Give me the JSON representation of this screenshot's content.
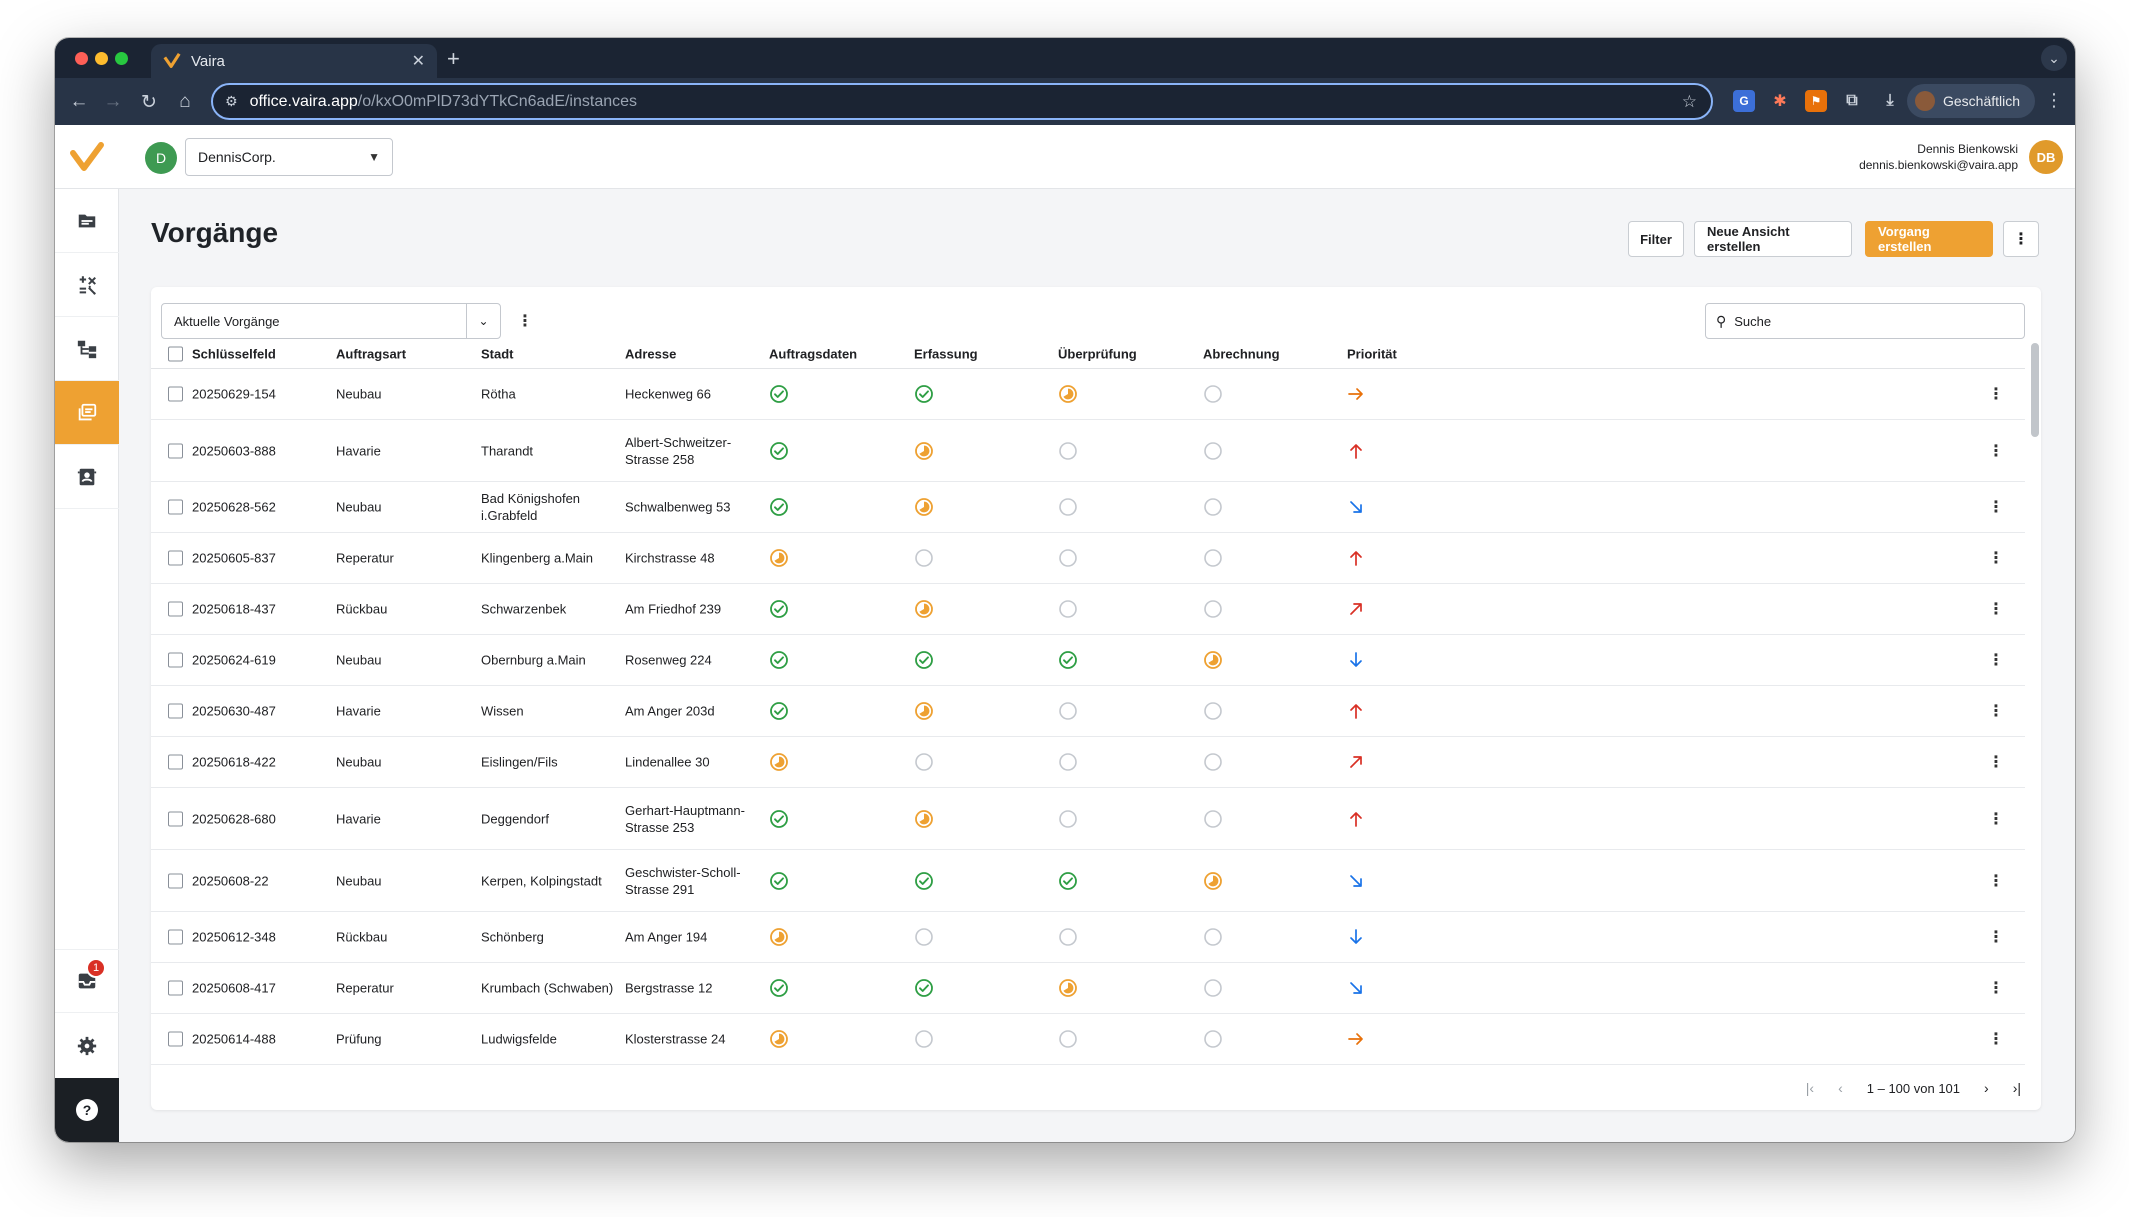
{
  "browser": {
    "tab_title": "Vaira",
    "url_host": "office.vaira.app",
    "url_path": "/o/kxO0mPlD73dYTkCn6adE/instances",
    "profile_label": "Geschäftlich"
  },
  "header": {
    "org_initial": "D",
    "org_name": "DennisCorp.",
    "user_name": "Dennis Bienkowski",
    "user_email": "dennis.bienkowski@vaira.app",
    "user_initials": "DB"
  },
  "sidebar": {
    "inbox_badge": "1",
    "help_label": "?"
  },
  "page": {
    "title": "Vorgänge",
    "filter_label": "Filter",
    "new_view_label": "Neue Ansicht erstellen",
    "create_label": "Vorgang erstellen"
  },
  "table": {
    "view_name": "Aktuelle Vorgänge",
    "search_placeholder": "Suche",
    "columns": [
      "Schlüsselfeld",
      "Auftragsart",
      "Stadt",
      "Adresse",
      "Auftragsdaten",
      "Erfassung",
      "Überprüfung",
      "Abrechnung",
      "Priorität"
    ],
    "rows": [
      {
        "key": "20250629-154",
        "type": "Neubau",
        "city": "Rötha",
        "address": "Heckenweg 66",
        "auftrag": "done",
        "erfassung": "done",
        "pruefung": "progress",
        "abrechnung": "open",
        "priority": "right"
      },
      {
        "key": "20250603-888",
        "type": "Havarie",
        "city": "Tharandt",
        "address": "Albert-Schweitzer-Strasse 258",
        "auftrag": "done",
        "erfassung": "progress",
        "pruefung": "open",
        "abrechnung": "open",
        "priority": "up"
      },
      {
        "key": "20250628-562",
        "type": "Neubau",
        "city": "Bad Königshofen i.Grabfeld",
        "address": "Schwalbenweg 53",
        "auftrag": "done",
        "erfassung": "progress",
        "pruefung": "open",
        "abrechnung": "open",
        "priority": "down-right"
      },
      {
        "key": "20250605-837",
        "type": "Reperatur",
        "city": "Klingenberg a.Main",
        "address": "Kirchstrasse 48",
        "auftrag": "progress",
        "erfassung": "open",
        "pruefung": "open",
        "abrechnung": "open",
        "priority": "up"
      },
      {
        "key": "20250618-437",
        "type": "Rückbau",
        "city": "Schwarzenbek",
        "address": "Am Friedhof 239",
        "auftrag": "done",
        "erfassung": "progress",
        "pruefung": "open",
        "abrechnung": "open",
        "priority": "up-right"
      },
      {
        "key": "20250624-619",
        "type": "Neubau",
        "city": "Obernburg a.Main",
        "address": "Rosenweg 224",
        "auftrag": "done",
        "erfassung": "done",
        "pruefung": "done",
        "abrechnung": "progress",
        "priority": "down"
      },
      {
        "key": "20250630-487",
        "type": "Havarie",
        "city": "Wissen",
        "address": "Am Anger 203d",
        "auftrag": "done",
        "erfassung": "progress",
        "pruefung": "open",
        "abrechnung": "open",
        "priority": "up"
      },
      {
        "key": "20250618-422",
        "type": "Neubau",
        "city": "Eislingen/Fils",
        "address": "Lindenallee 30",
        "auftrag": "progress",
        "erfassung": "open",
        "pruefung": "open",
        "abrechnung": "open",
        "priority": "up-right"
      },
      {
        "key": "20250628-680",
        "type": "Havarie",
        "city": "Deggendorf",
        "address": "Gerhart-Hauptmann-Strasse 253",
        "auftrag": "done",
        "erfassung": "progress",
        "pruefung": "open",
        "abrechnung": "open",
        "priority": "up"
      },
      {
        "key": "20250608-22",
        "type": "Neubau",
        "city": "Kerpen, Kolpingstadt",
        "address": "Geschwister-Scholl-Strasse 291",
        "auftrag": "done",
        "erfassung": "done",
        "pruefung": "done",
        "abrechnung": "progress",
        "priority": "down-right"
      },
      {
        "key": "20250612-348",
        "type": "Rückbau",
        "city": "Schönberg",
        "address": "Am Anger 194",
        "auftrag": "progress",
        "erfassung": "open",
        "pruefung": "open",
        "abrechnung": "open",
        "priority": "down"
      },
      {
        "key": "20250608-417",
        "type": "Reperatur",
        "city": "Krumbach (Schwaben)",
        "address": "Bergstrasse 12",
        "auftrag": "done",
        "erfassung": "done",
        "pruefung": "progress",
        "abrechnung": "open",
        "priority": "down-right"
      },
      {
        "key": "20250614-488",
        "type": "Prüfung",
        "city": "Ludwigsfelde",
        "address": "Klosterstrasse 24",
        "auftrag": "progress",
        "erfassung": "open",
        "pruefung": "open",
        "abrechnung": "open",
        "priority": "right"
      }
    ],
    "pagination": "1 – 100 von 101"
  },
  "colors": {
    "accent": "#eea132",
    "done": "#2e9e44",
    "progress": "#eea132",
    "open": "#c4c8ce",
    "priority_red": "#d93025",
    "priority_orange": "#e8710a",
    "priority_blue": "#1a73e8"
  }
}
